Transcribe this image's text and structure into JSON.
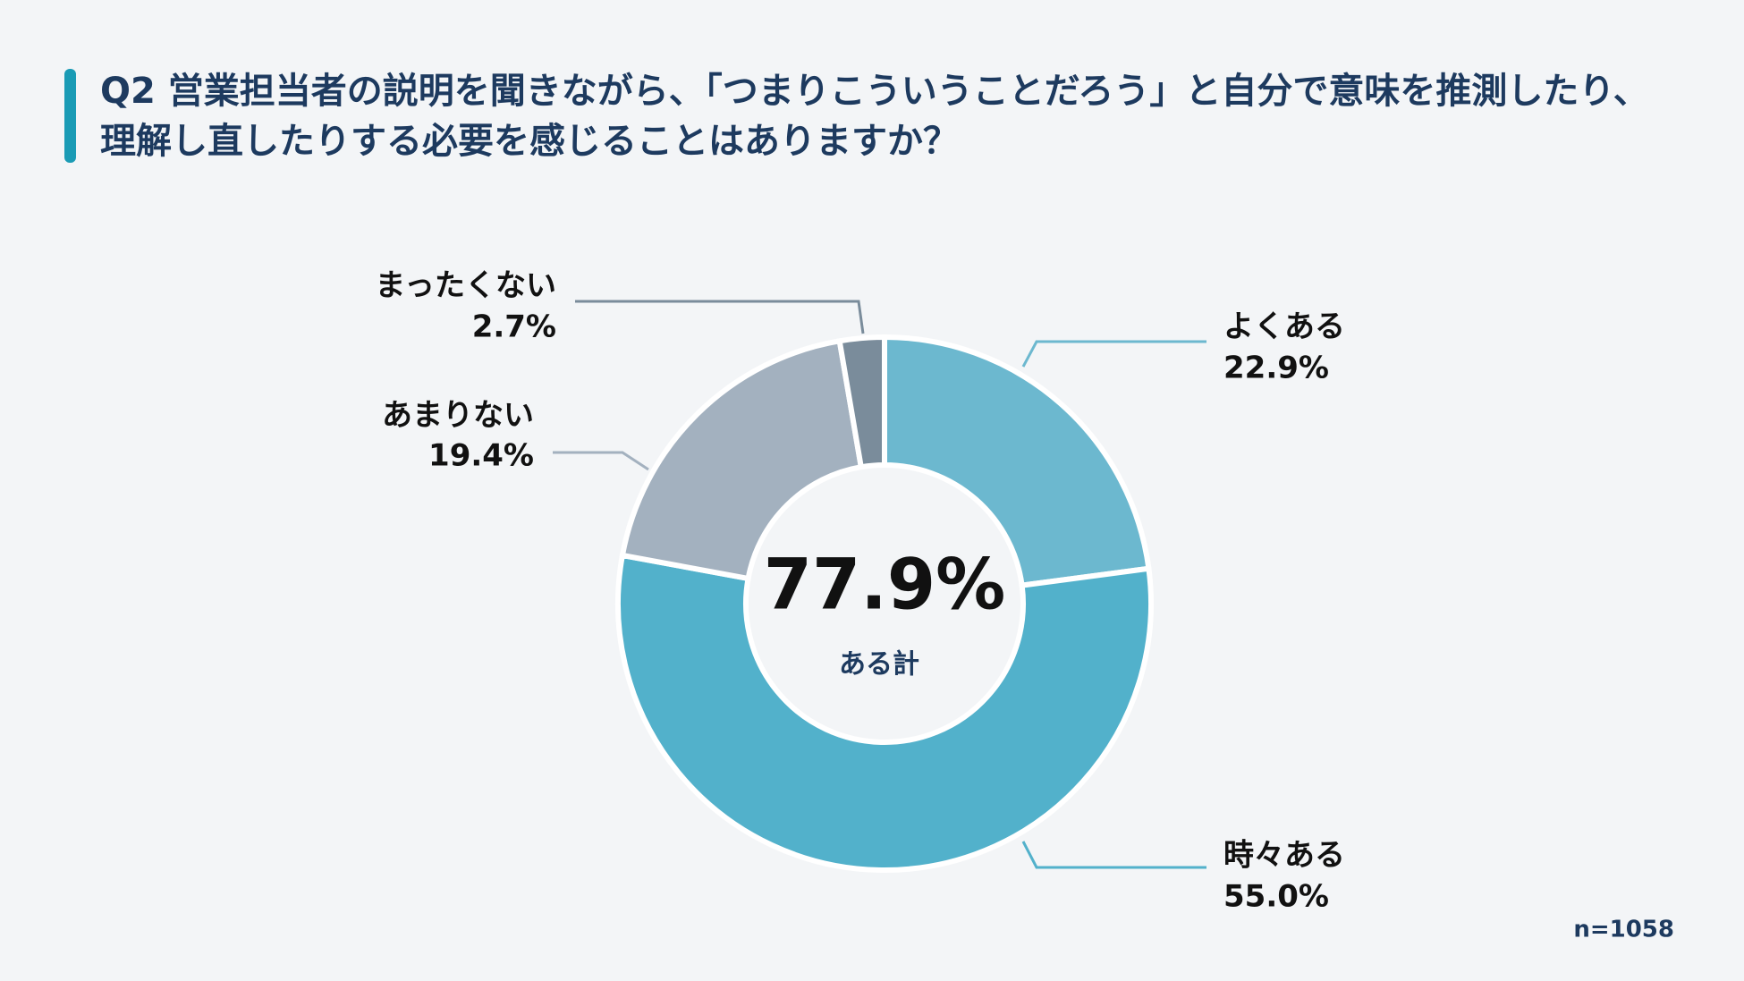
{
  "chart_data": {
    "type": "donut",
    "title": "Q2 営業担当者の説明を聞きながら、「つまりこういうことだろう」と自分で意味を推測したり、理解し直したりする必要を感じることはありますか？",
    "categories": [
      "よくある",
      "時々ある",
      "あまりない",
      "まったくない"
    ],
    "values": [
      22.9,
      55.0,
      19.4,
      2.7
    ],
    "value_labels": [
      "22.9%",
      "55.0%",
      "19.4%",
      "2.7%"
    ],
    "colors": [
      "#6cb8cf",
      "#52b1cb",
      "#a3b1bf",
      "#7a8c9b"
    ],
    "total": {
      "value": 77.9,
      "label": "77.9%"
    },
    "total_caption": "ある計",
    "note": "n=1058"
  }
}
